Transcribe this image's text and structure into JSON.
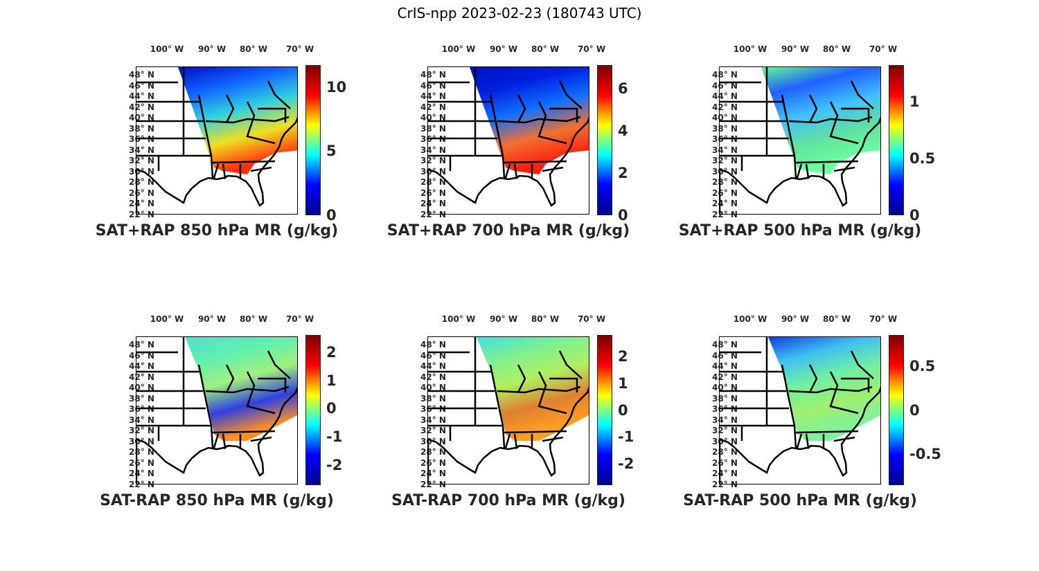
{
  "figure_title": "CrIS-npp 2023-02-23 (180743 UTC)",
  "lon_labels": [
    "100° W",
    "90° W",
    "80° W",
    "70° W"
  ],
  "lat_labels": [
    "48° N",
    "46° N",
    "44° N",
    "42° N",
    "40° N",
    "38° N",
    "36° N",
    "34° N",
    "32° N",
    "30° N",
    "28° N",
    "26° N",
    "24° N",
    "22° N"
  ],
  "colormap": [
    "#00008f",
    "#0000ff",
    "#00ffff",
    "#ffff00",
    "#ff0000",
    "#800000"
  ],
  "panels": [
    {
      "title": "SAT+RAP 850 hPa MR (g/kg)",
      "cbar_range": [
        0,
        11.7
      ],
      "ticks": [
        "0",
        "5",
        "10"
      ],
      "tick_values": [
        0,
        5,
        10
      ],
      "swath_colors": [
        "#0010c0",
        "#1060ff",
        "#30d0e0",
        "#f0e020",
        "#ff3010"
      ]
    },
    {
      "title": "SAT+RAP 700 hPa MR (g/kg)",
      "cbar_range": [
        0,
        7.1
      ],
      "ticks": [
        "0",
        "2",
        "4",
        "6"
      ],
      "tick_values": [
        0,
        2,
        4,
        6
      ],
      "swath_colors": [
        "#0010c0",
        "#0020e0",
        "#1070ff",
        "#f07030",
        "#ff2010"
      ]
    },
    {
      "title": "SAT+RAP 500 hPa MR (g/kg)",
      "cbar_range": [
        0,
        1.32
      ],
      "ticks": [
        "0",
        "0.5",
        "1"
      ],
      "tick_values": [
        0,
        0.5,
        1
      ],
      "swath_colors": [
        "#60ff90",
        "#2060ff",
        "#40c0ff",
        "#60e0a0",
        "#70ffa0"
      ]
    },
    {
      "title": "SAT-RAP 850 hPa MR (g/kg)",
      "cbar_range": [
        -2.7,
        2.6
      ],
      "ticks": [
        "2",
        "1",
        "0",
        "-1",
        "-2"
      ],
      "tick_values": [
        2,
        1,
        0,
        -1,
        -2
      ],
      "swath_colors": [
        "#50e0d0",
        "#60f0b0",
        "#a0f080",
        "#3040e0",
        "#ff9020"
      ]
    },
    {
      "title": "SAT-RAP 700 hPa MR (g/kg)",
      "cbar_range": [
        -2.8,
        2.8
      ],
      "ticks": [
        "2",
        "1",
        "0",
        "-1",
        "-2"
      ],
      "tick_values": [
        2,
        1,
        0,
        -1,
        -2
      ],
      "swath_colors": [
        "#40e0e0",
        "#80f090",
        "#b0f060",
        "#e08030",
        "#ffa020"
      ]
    },
    {
      "title": "SAT-RAP 500 hPa MR (g/kg)",
      "cbar_range": [
        -0.85,
        0.85
      ],
      "ticks": [
        "0.5",
        "0",
        "-0.5"
      ],
      "tick_values": [
        0.5,
        0,
        -0.5
      ],
      "swath_colors": [
        "#1040e0",
        "#40c0f0",
        "#70f0a0",
        "#a0f070",
        "#80f0a0"
      ]
    }
  ]
}
